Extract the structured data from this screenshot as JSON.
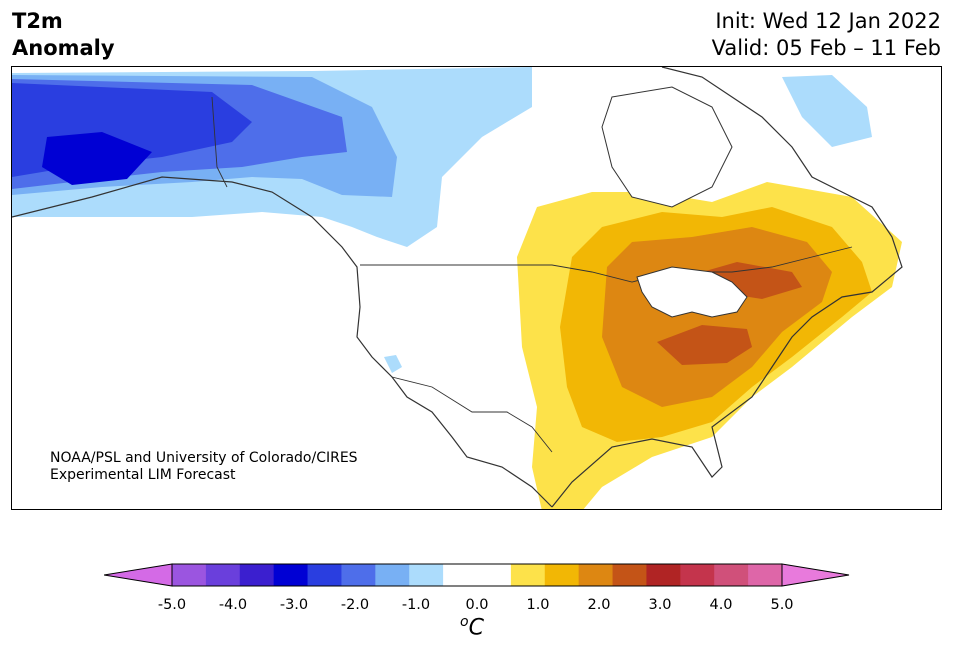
{
  "title": {
    "variable": "T2m",
    "subtitle": "Anomaly",
    "init": "Init: Wed 12 Jan 2022",
    "valid": "Valid: 05 Feb – 11 Feb"
  },
  "credit": {
    "line1": "NOAA/PSL and University of Colorado/CIRES",
    "line2": "Experimental LIM Forecast"
  },
  "colorbar": {
    "unit_base": "C",
    "unit_sup": "o",
    "tick_labels": [
      "-5.0",
      "-4.0",
      "-3.0",
      "-2.0",
      "-1.0",
      "0.0",
      "1.0",
      "2.0",
      "3.0",
      "4.0",
      "5.0"
    ],
    "colors": [
      "#9b55e0",
      "#6a3fdc",
      "#3b1fcf",
      "#0000d4",
      "#2a3ee0",
      "#4e6eea",
      "#78b0f4",
      "#acdcfc",
      "#ffffff",
      "#ffffff",
      "#fde24a",
      "#f2b705",
      "#dd8712",
      "#c45417",
      "#b02424",
      "#c4344c",
      "#d0507a",
      "#de66a8"
    ],
    "under_color": "#d46ae6",
    "over_color": "#e87adc"
  },
  "map": {
    "region": "North America",
    "colors": {
      "deep_blue": "#0000d4",
      "blue": "#2a3ee0",
      "mid_blue": "#4e6eea",
      "light_blue": "#78b0f4",
      "pale_blue": "#acdcfc",
      "yellow": "#fde24a",
      "gold": "#f2b705",
      "orange": "#dd8712",
      "dark_orange": "#c45417",
      "coast": "#333333"
    }
  }
}
